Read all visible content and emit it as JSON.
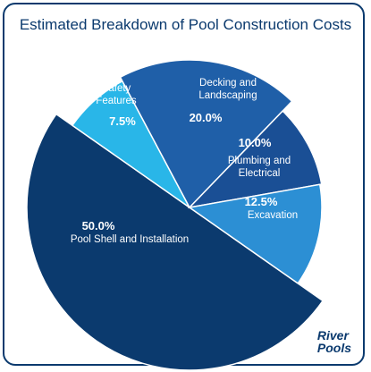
{
  "chart_data": {
    "type": "pie",
    "title": "Estimated Breakdown of Pool Construction Costs",
    "categories": [
      "Pool Shell and Installation",
      "Safety Features",
      "Decking and Landscaping",
      "Plumbing and Electrical",
      "Excavation"
    ],
    "values": [
      50.0,
      7.5,
      20.0,
      10.0,
      12.5
    ],
    "value_labels": [
      "50.0%",
      "7.5%",
      "20.0%",
      "10.0%",
      "12.5%"
    ],
    "colors": [
      "#0b3a6e",
      "#29b6e8",
      "#1f5fa8",
      "#1a4f95",
      "#2c8fd4"
    ]
  },
  "brand": [
    "River",
    "Pools"
  ]
}
